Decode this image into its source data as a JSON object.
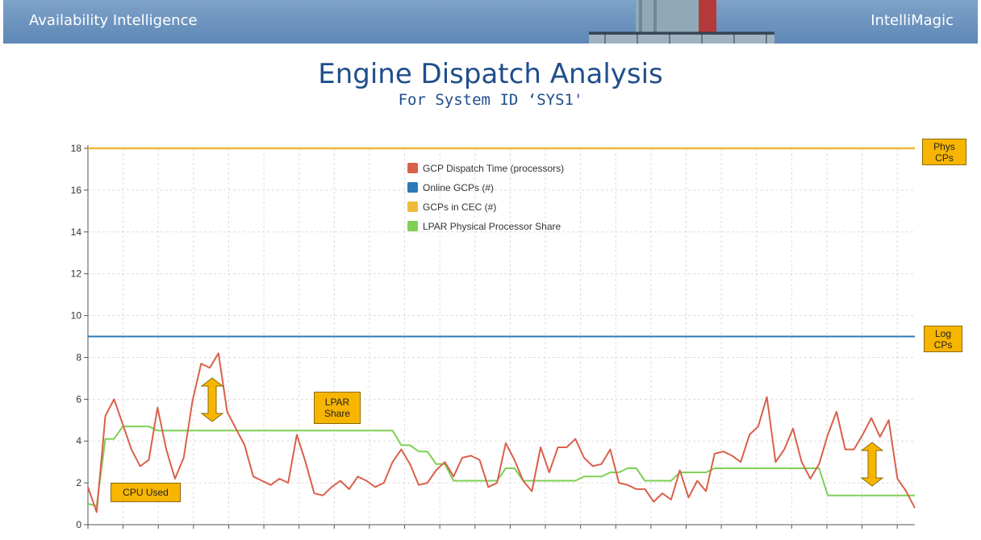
{
  "header": {
    "left_text": "Availability Intelligence",
    "right_text": "IntelliMagic"
  },
  "page": {
    "title": "Engine Dispatch Analysis",
    "subtitle": "For System ID ‘SYS1'"
  },
  "colors": {
    "gcp_dispatch": "#d9604a",
    "online_gcps": "#2a7ab8",
    "gcps_in_cec": "#f0b93a",
    "lpar_share": "#7fcf55",
    "callout_fill": "#f7b500"
  },
  "annotations": {
    "phys_cps": "Phys\nCPs",
    "log_cps": "Log\nCPs",
    "lpar_share": "LPAR\nShare",
    "cpu_used": "CPU Used"
  },
  "chart_data": {
    "type": "line",
    "title": "",
    "xlabel": "",
    "ylabel": "",
    "ylim": [
      0,
      18
    ],
    "yticks": [
      0,
      2,
      4,
      6,
      8,
      10,
      12,
      14,
      16,
      18
    ],
    "grid": true,
    "legend_position": "top-center",
    "series": [
      {
        "name": "GCP Dispatch Time (processors)",
        "values": [
          1.8,
          0.6,
          5.2,
          6.0,
          4.8,
          3.6,
          2.8,
          3.1,
          5.6,
          3.6,
          2.2,
          3.2,
          5.9,
          7.7,
          7.5,
          8.2,
          5.4,
          4.6,
          3.8,
          2.3,
          2.1,
          1.9,
          2.2,
          2.0,
          4.3,
          3.0,
          1.5,
          1.4,
          1.8,
          2.1,
          1.7,
          2.3,
          2.1,
          1.8,
          2.0,
          3.0,
          3.6,
          2.9,
          1.9,
          2.0,
          2.6,
          3.0,
          2.3,
          3.2,
          3.3,
          3.1,
          1.8,
          2.0,
          3.9,
          3.1,
          2.1,
          1.6,
          3.7,
          2.5,
          3.7,
          3.7,
          4.1,
          3.2,
          2.8,
          2.9,
          3.6,
          2.0,
          1.9,
          1.7,
          1.7,
          1.1,
          1.5,
          1.2,
          2.6,
          1.3,
          2.1,
          1.6,
          3.4,
          3.5,
          3.3,
          3.0,
          4.3,
          4.7,
          6.1,
          3.0,
          3.6,
          4.6,
          3.0,
          2.2,
          2.9,
          4.3,
          5.4,
          3.6,
          3.6,
          4.3,
          5.1,
          4.2,
          5.0,
          2.2,
          1.6,
          0.8
        ]
      },
      {
        "name": "Online GCPs (#)",
        "constant": 9
      },
      {
        "name": "GCPs in CEC (#)",
        "constant": 18
      },
      {
        "name": "LPAR Physical Processor Share",
        "values": [
          1.0,
          0.9,
          4.1,
          4.1,
          4.7,
          4.7,
          4.7,
          4.7,
          4.5,
          4.5,
          4.5,
          4.5,
          4.5,
          4.5,
          4.5,
          4.5,
          4.5,
          4.5,
          4.5,
          4.5,
          4.5,
          4.5,
          4.5,
          4.5,
          4.5,
          4.5,
          4.5,
          4.5,
          4.5,
          4.5,
          4.5,
          4.5,
          4.5,
          4.5,
          4.5,
          4.5,
          3.8,
          3.8,
          3.5,
          3.5,
          2.9,
          2.9,
          2.1,
          2.1,
          2.1,
          2.1,
          2.1,
          2.1,
          2.7,
          2.7,
          2.1,
          2.1,
          2.1,
          2.1,
          2.1,
          2.1,
          2.1,
          2.3,
          2.3,
          2.3,
          2.5,
          2.5,
          2.7,
          2.7,
          2.1,
          2.1,
          2.1,
          2.1,
          2.5,
          2.5,
          2.5,
          2.5,
          2.7,
          2.7,
          2.7,
          2.7,
          2.7,
          2.7,
          2.7,
          2.7,
          2.7,
          2.7,
          2.7,
          2.7,
          2.7,
          1.4,
          1.4,
          1.4,
          1.4,
          1.4,
          1.4,
          1.4,
          1.4,
          1.4,
          1.4,
          1.4
        ]
      }
    ]
  }
}
